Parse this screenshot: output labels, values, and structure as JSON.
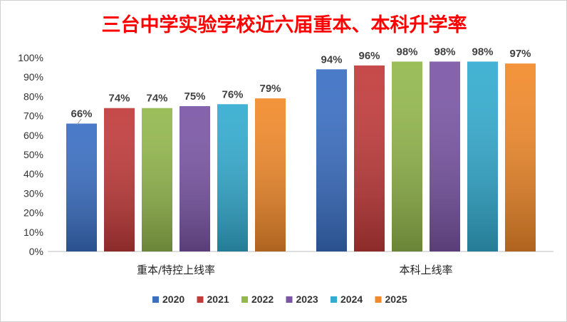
{
  "chart_data": {
    "type": "bar",
    "title": "三台中学实验学校近六届重本、本科升学率",
    "categories": [
      "重本/特控上线率",
      "本科上线率"
    ],
    "series": [
      {
        "name": "2020",
        "values": [
          66,
          94
        ],
        "color": "#3a6fc4"
      },
      {
        "name": "2021",
        "values": [
          74,
          96
        ],
        "color": "#c23a3a"
      },
      {
        "name": "2022",
        "values": [
          74,
          98
        ],
        "color": "#93b84c"
      },
      {
        "name": "2023",
        "values": [
          75,
          98
        ],
        "color": "#7b56a6"
      },
      {
        "name": "2024",
        "values": [
          76,
          98
        ],
        "color": "#33acd0"
      },
      {
        "name": "2025",
        "values": [
          79,
          97
        ],
        "color": "#f28a2a"
      }
    ],
    "xlabel": "",
    "ylabel": "",
    "ylim": [
      0,
      100
    ],
    "yticks": [
      "0%",
      "10%",
      "20%",
      "30%",
      "40%",
      "50%",
      "60%",
      "70%",
      "80%",
      "90%",
      "100%"
    ],
    "value_suffix": "%",
    "grid": false,
    "legend": "bottom"
  }
}
